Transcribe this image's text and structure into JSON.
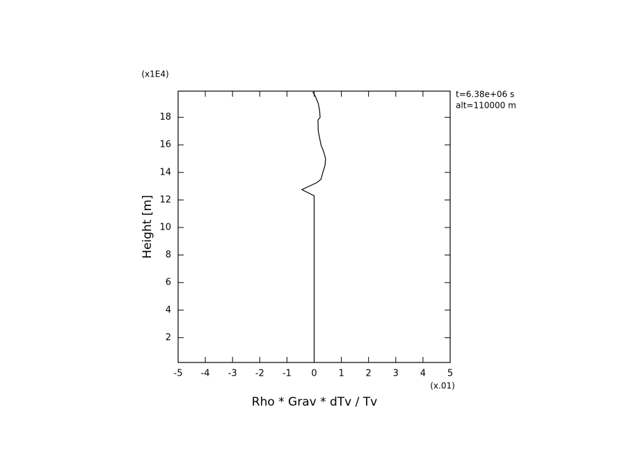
{
  "chart_data": {
    "type": "line",
    "x_label": "Rho * Grav * dTv / Tv",
    "y_label": "Height [m]",
    "x_multiplier": "(x.01)",
    "y_multiplier": "(x1E4)",
    "annotations": [
      "t=6.38e+06 s",
      "alt=110000 m"
    ],
    "xlim": [
      -5,
      5
    ],
    "xticks": [
      -5,
      -4,
      -3,
      -2,
      -1,
      0,
      1,
      2,
      3,
      4,
      5
    ],
    "ylim": [
      0.2,
      19.9
    ],
    "yticks": [
      2,
      4,
      6,
      8,
      10,
      12,
      14,
      16,
      18
    ],
    "series": [
      {
        "color": "#000000",
        "x": [
          0,
          0,
          0,
          -0.45,
          0.1,
          0.25,
          0.32,
          0.4,
          0.42,
          0.35,
          0.25,
          0.15,
          0.14,
          0.22,
          0.2,
          0.15,
          0.05,
          -0.05
        ],
        "values": [
          0.2,
          6,
          12.3,
          12.75,
          13.26,
          13.5,
          14,
          14.5,
          15,
          15.5,
          16,
          17,
          17.8,
          18,
          18.5,
          19,
          19.5,
          19.85
        ]
      }
    ]
  }
}
